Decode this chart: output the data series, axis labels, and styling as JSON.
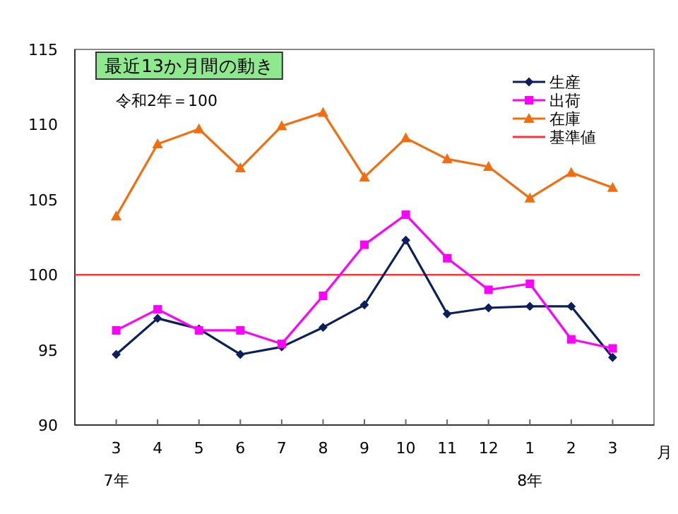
{
  "chart_data": {
    "type": "line",
    "title": "最近13か月間の動き",
    "subtitle": "令和2年＝100",
    "xlabel": "月",
    "categories": [
      "3",
      "4",
      "5",
      "6",
      "7",
      "8",
      "9",
      "10",
      "11",
      "12",
      "1",
      "2",
      "3"
    ],
    "series": [
      {
        "name": "生産",
        "color": "#0a1f5c",
        "marker": "diamond",
        "values": [
          94.7,
          97.1,
          96.4,
          94.7,
          95.2,
          96.5,
          98.0,
          102.3,
          97.4,
          97.8,
          97.9,
          97.9,
          94.5
        ]
      },
      {
        "name": "出荷",
        "color": "#ff00ff",
        "marker": "square",
        "values": [
          96.3,
          97.7,
          96.3,
          96.3,
          95.4,
          98.6,
          102.0,
          104.0,
          101.1,
          99.0,
          99.4,
          95.7,
          95.1
        ]
      },
      {
        "name": "在庫",
        "color": "#f26d0f",
        "marker": "triangle",
        "values": [
          103.9,
          108.7,
          109.7,
          107.1,
          109.9,
          110.8,
          106.5,
          109.1,
          107.7,
          107.2,
          105.1,
          106.8,
          105.8
        ]
      }
    ],
    "ref_lines": [
      {
        "axis": "y",
        "value": 100,
        "label": "基準値",
        "color": "#ff3333"
      }
    ],
    "annotations": [
      "7年",
      "8年"
    ],
    "ylim": [
      90,
      115
    ],
    "yticks": [
      90,
      95,
      100,
      105,
      110,
      115
    ],
    "legend": "top right"
  }
}
